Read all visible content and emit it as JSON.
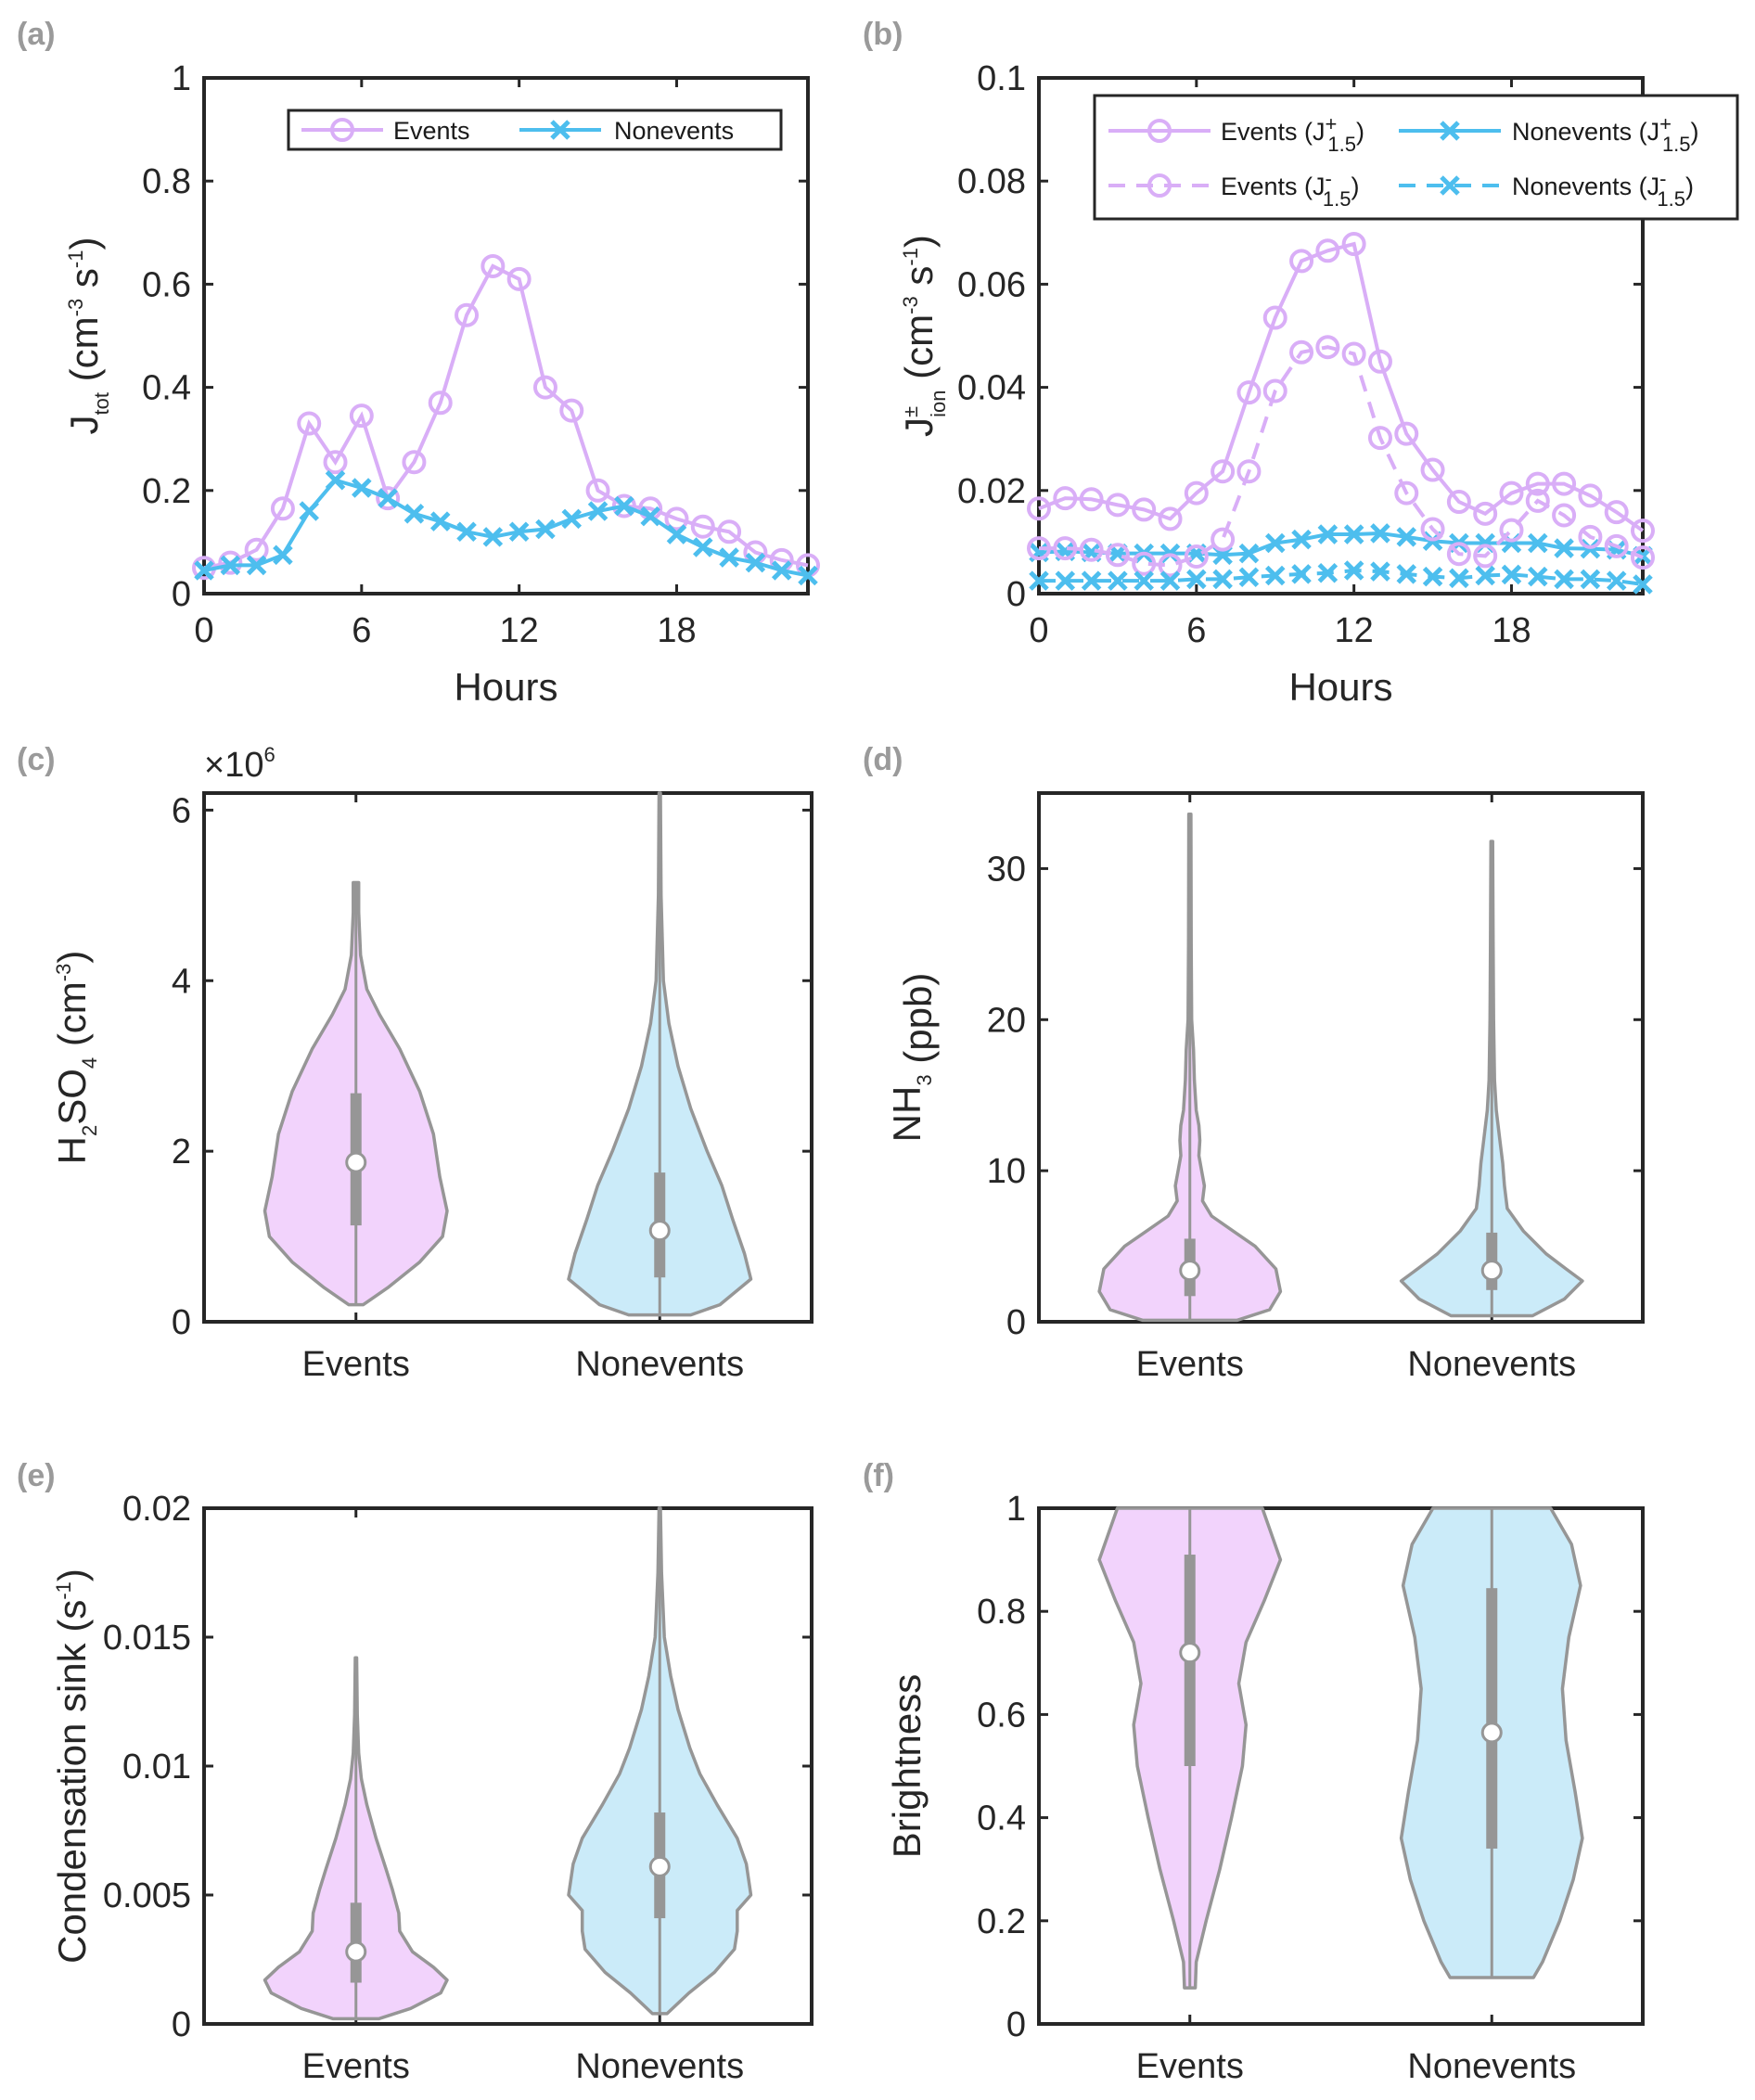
{
  "colors": {
    "events": "#D9AEF7",
    "nonevents": "#4DBEEE",
    "events_fill": "#F2D3FC",
    "nonevents_fill": "#CBEBF9",
    "violin_edge": "#969696",
    "box": "#969696",
    "axis": "#262626",
    "panel_tag": "#9A9A9A"
  },
  "chart_data": [
    {
      "id": "a",
      "panel_tag": "(a)",
      "type": "line",
      "xlabel": "Hours",
      "ylabel_main": "J",
      "ylabel_sub": "tot",
      "ylabel_units": "(cm",
      "ylabel_sup1": "-3",
      "ylabel_mid": " s",
      "ylabel_sup2": "-1",
      "ylabel_close": ")",
      "xlim": [
        0,
        23
      ],
      "ylim": [
        0,
        1
      ],
      "xticks": [
        0,
        6,
        12,
        18
      ],
      "xtick_labels": [
        "0",
        "6",
        "12",
        "18"
      ],
      "yticks": [
        0,
        0.2,
        0.4,
        0.6,
        0.8,
        1
      ],
      "ytick_labels": [
        "0",
        "0.2",
        "0.4",
        "0.6",
        "0.8",
        "1"
      ],
      "legend_position": "top-right",
      "x": [
        0,
        1,
        2,
        3,
        4,
        5,
        6,
        7,
        8,
        9,
        10,
        11,
        12,
        13,
        14,
        15,
        16,
        17,
        18,
        19,
        20,
        21,
        22,
        23
      ],
      "series": [
        {
          "name": "Events",
          "marker": "circle",
          "dash": false,
          "color_key": "events",
          "values": [
            0.05,
            0.06,
            0.085,
            0.165,
            0.33,
            0.255,
            0.345,
            0.185,
            0.255,
            0.37,
            0.54,
            0.635,
            0.61,
            0.4,
            0.355,
            0.2,
            0.17,
            0.165,
            0.145,
            0.13,
            0.12,
            0.08,
            0.065,
            0.055
          ]
        },
        {
          "name": "Nonevents",
          "marker": "x",
          "dash": false,
          "color_key": "nonevents",
          "values": [
            0.045,
            0.055,
            0.055,
            0.075,
            0.16,
            0.22,
            0.205,
            0.185,
            0.155,
            0.14,
            0.12,
            0.11,
            0.12,
            0.125,
            0.145,
            0.16,
            0.17,
            0.15,
            0.115,
            0.09,
            0.07,
            0.06,
            0.045,
            0.035
          ]
        }
      ]
    },
    {
      "id": "b",
      "panel_tag": "(b)",
      "type": "line",
      "xlabel": "Hours",
      "ylabel_main": "J",
      "ylabel_sup": "±",
      "ylabel_sub": "ion",
      "ylabel_units": "(cm",
      "ylabel_sup1": "-3",
      "ylabel_mid": " s",
      "ylabel_sup2": "-1",
      "ylabel_close": ")",
      "xlim": [
        0,
        23
      ],
      "ylim": [
        0,
        0.1
      ],
      "xticks": [
        0,
        6,
        12,
        18
      ],
      "xtick_labels": [
        "0",
        "6",
        "12",
        "18"
      ],
      "yticks": [
        0,
        0.02,
        0.04,
        0.06,
        0.08,
        0.1
      ],
      "ytick_labels": [
        "0",
        "0.02",
        "0.04",
        "0.06",
        "0.08",
        "0.1"
      ],
      "legend_position": "top-right",
      "x": [
        0,
        1,
        2,
        3,
        4,
        5,
        6,
        7,
        8,
        9,
        10,
        11,
        12,
        13,
        14,
        15,
        16,
        17,
        18,
        19,
        20,
        21,
        22,
        23
      ],
      "series": [
        {
          "name": "Events (J+1.5)",
          "legend_base": "Events (J",
          "legend_sup": "+",
          "legend_sub": "1.5",
          "marker": "circle",
          "dash": false,
          "color_key": "events",
          "values": [
            0.0165,
            0.0185,
            0.0183,
            0.0172,
            0.0163,
            0.0145,
            0.0195,
            0.0237,
            0.039,
            0.0535,
            0.0645,
            0.0665,
            0.0678,
            0.045,
            0.031,
            0.024,
            0.0178,
            0.0155,
            0.0195,
            0.0213,
            0.0213,
            0.019,
            0.0158,
            0.0122
          ]
        },
        {
          "name": "Nonevents (J+1.5)",
          "legend_base": "Nonevents (J",
          "legend_sup": "+",
          "legend_sub": "1.5",
          "marker": "x",
          "dash": false,
          "color_key": "nonevents",
          "values": [
            0.008,
            0.0082,
            0.008,
            0.0078,
            0.0078,
            0.0078,
            0.0078,
            0.0075,
            0.0078,
            0.0098,
            0.0105,
            0.0115,
            0.0115,
            0.0117,
            0.011,
            0.0102,
            0.0098,
            0.0098,
            0.0098,
            0.0098,
            0.0088,
            0.0087,
            0.0085,
            0.0073
          ]
        },
        {
          "name": "Events (J-1.5)",
          "legend_base": "Events (J",
          "legend_sup": "-",
          "legend_sub": "1.5",
          "marker": "circle",
          "dash": true,
          "color_key": "events",
          "values": [
            0.0088,
            0.0088,
            0.0085,
            0.0075,
            0.0058,
            0.0055,
            0.0072,
            0.0105,
            0.0237,
            0.0393,
            0.0468,
            0.0478,
            0.0465,
            0.0302,
            0.0195,
            0.0125,
            0.0077,
            0.0073,
            0.0123,
            0.018,
            0.0152,
            0.011,
            0.0092,
            0.007
          ]
        },
        {
          "name": "Nonevents (J-1.5)",
          "legend_base": "Nonevents (J",
          "legend_sup": "-",
          "legend_sub": "1.5",
          "marker": "x",
          "dash": true,
          "color_key": "nonevents",
          "values": [
            0.0025,
            0.0025,
            0.0025,
            0.0025,
            0.0025,
            0.0025,
            0.0028,
            0.0028,
            0.0032,
            0.0035,
            0.0038,
            0.004,
            0.0045,
            0.0043,
            0.0038,
            0.0033,
            0.003,
            0.0035,
            0.0037,
            0.0033,
            0.0028,
            0.0028,
            0.0025,
            0.0018
          ]
        }
      ]
    },
    {
      "id": "c",
      "panel_tag": "(c)",
      "type": "violin",
      "ylabel_parts": [
        "H",
        "2",
        "SO",
        "4",
        " (cm",
        "-3",
        ")"
      ],
      "exponent_label": "×10",
      "exponent_sup": "6",
      "categories": [
        "Events",
        "Nonevents"
      ],
      "ylim": [
        0,
        6200000
      ],
      "yticks": [
        0,
        2000000,
        4000000,
        6000000
      ],
      "ytick_labels": [
        "0",
        "2",
        "4",
        "6"
      ],
      "violins": [
        {
          "category": "Events",
          "color_key": "events_fill",
          "min": 200000,
          "max": 5150000,
          "whisker_high": 4900000,
          "q1": 1130000,
          "median": 1870000,
          "q3": 2680000,
          "density": [
            [
              200000,
              0.08
            ],
            [
              400000,
              0.35
            ],
            [
              700000,
              0.7
            ],
            [
              1000000,
              0.95
            ],
            [
              1300000,
              1.0
            ],
            [
              1700000,
              0.92
            ],
            [
              2200000,
              0.85
            ],
            [
              2700000,
              0.7
            ],
            [
              3200000,
              0.48
            ],
            [
              3600000,
              0.26
            ],
            [
              3900000,
              0.12
            ],
            [
              4300000,
              0.05
            ],
            [
              4800000,
              0.03
            ],
            [
              5150000,
              0.03
            ]
          ]
        },
        {
          "category": "Nonevents",
          "color_key": "nonevents_fill",
          "min": 80000,
          "max": 6200000,
          "whisker_high": 3600000,
          "q1": 520000,
          "median": 1070000,
          "q3": 1750000,
          "density": [
            [
              80000,
              0.34
            ],
            [
              200000,
              0.66
            ],
            [
              500000,
              1.0
            ],
            [
              800000,
              0.93
            ],
            [
              1200000,
              0.8
            ],
            [
              1600000,
              0.68
            ],
            [
              2000000,
              0.52
            ],
            [
              2500000,
              0.34
            ],
            [
              3000000,
              0.2
            ],
            [
              3500000,
              0.1
            ],
            [
              4000000,
              0.04
            ],
            [
              5000000,
              0.015
            ],
            [
              6200000,
              0.008
            ]
          ]
        }
      ]
    },
    {
      "id": "d",
      "panel_tag": "(d)",
      "type": "violin",
      "ylabel_parts": [
        "NH",
        "3",
        "",
        "",
        " (ppb)",
        "",
        ""
      ],
      "categories": [
        "Events",
        "Nonevents"
      ],
      "ylim": [
        0,
        35
      ],
      "yticks": [
        0,
        10,
        20,
        30
      ],
      "ytick_labels": [
        "0",
        "10",
        "20",
        "30"
      ],
      "violins": [
        {
          "category": "Events",
          "color_key": "events_fill",
          "min": 0.1,
          "max": 33.6,
          "whisker_high": 11,
          "q1": 1.7,
          "median": 3.4,
          "q3": 5.5,
          "density": [
            [
              0.1,
              0.52
            ],
            [
              0.8,
              0.88
            ],
            [
              2,
              1.0
            ],
            [
              3.5,
              0.95
            ],
            [
              5,
              0.72
            ],
            [
              6,
              0.48
            ],
            [
              7,
              0.24
            ],
            [
              8,
              0.14
            ],
            [
              9,
              0.16
            ],
            [
              10,
              0.13
            ],
            [
              11,
              0.1
            ],
            [
              12,
              0.11
            ],
            [
              13,
              0.1
            ],
            [
              14,
              0.07
            ],
            [
              16,
              0.05
            ],
            [
              18,
              0.04
            ],
            [
              20,
              0.02
            ],
            [
              25,
              0.015
            ],
            [
              33.6,
              0.012
            ]
          ]
        },
        {
          "category": "Nonevents",
          "color_key": "nonevents_fill",
          "min": 0.4,
          "max": 31.8,
          "whisker_high": 11.5,
          "q1": 2.1,
          "median": 3.4,
          "q3": 5.9,
          "density": [
            [
              0.4,
              0.45
            ],
            [
              1.5,
              0.8
            ],
            [
              2.7,
              1.0
            ],
            [
              3.5,
              0.82
            ],
            [
              4.5,
              0.6
            ],
            [
              6,
              0.35
            ],
            [
              7.5,
              0.17
            ],
            [
              9,
              0.14
            ],
            [
              10.5,
              0.12
            ],
            [
              12,
              0.09
            ],
            [
              14,
              0.05
            ],
            [
              16,
              0.03
            ],
            [
              20,
              0.02
            ],
            [
              25,
              0.015
            ],
            [
              31.8,
              0.01
            ]
          ]
        }
      ]
    },
    {
      "id": "e",
      "panel_tag": "(e)",
      "type": "violin",
      "ylabel_parts": [
        "Condensation sink (s",
        "",
        "",
        "",
        "",
        "-1",
        ")"
      ],
      "categories": [
        "Events",
        "Nonevents"
      ],
      "ylim": [
        0,
        0.02
      ],
      "yticks": [
        0,
        0.005,
        0.01,
        0.015,
        0.02
      ],
      "ytick_labels": [
        "0",
        "0.005",
        "0.01",
        "0.015",
        "0.02"
      ],
      "violins": [
        {
          "category": "Events",
          "color_key": "events_fill",
          "min": 0.0002,
          "max": 0.0142,
          "whisker_high": 0.0092,
          "q1": 0.0016,
          "median": 0.0028,
          "q3": 0.0047,
          "density": [
            [
              0.0002,
              0.25
            ],
            [
              0.0006,
              0.6
            ],
            [
              0.0012,
              0.93
            ],
            [
              0.0017,
              1.0
            ],
            [
              0.0022,
              0.85
            ],
            [
              0.0028,
              0.62
            ],
            [
              0.0036,
              0.48
            ],
            [
              0.0043,
              0.47
            ],
            [
              0.0052,
              0.4
            ],
            [
              0.006,
              0.33
            ],
            [
              0.0072,
              0.22
            ],
            [
              0.0085,
              0.12
            ],
            [
              0.0095,
              0.06
            ],
            [
              0.0105,
              0.03
            ],
            [
              0.012,
              0.015
            ],
            [
              0.0142,
              0.008
            ]
          ]
        },
        {
          "category": "Nonevents",
          "color_key": "nonevents_fill",
          "min": 0.0004,
          "max": 0.02,
          "whisker_high": 0.0143,
          "q1": 0.0041,
          "median": 0.0061,
          "q3": 0.0082,
          "density": [
            [
              0.0004,
              0.08
            ],
            [
              0.0012,
              0.32
            ],
            [
              0.002,
              0.6
            ],
            [
              0.0029,
              0.82
            ],
            [
              0.0036,
              0.85
            ],
            [
              0.0044,
              0.85
            ],
            [
              0.005,
              1.0
            ],
            [
              0.0062,
              0.95
            ],
            [
              0.0072,
              0.85
            ],
            [
              0.0085,
              0.63
            ],
            [
              0.0097,
              0.44
            ],
            [
              0.0107,
              0.33
            ],
            [
              0.0122,
              0.2
            ],
            [
              0.0135,
              0.12
            ],
            [
              0.015,
              0.05
            ],
            [
              0.0175,
              0.02
            ],
            [
              0.02,
              0.008
            ]
          ]
        }
      ]
    },
    {
      "id": "f",
      "panel_tag": "(f)",
      "type": "violin",
      "ylabel_parts": [
        "Brightness",
        "",
        "",
        "",
        "",
        "",
        ""
      ],
      "categories": [
        "Events",
        "Nonevents"
      ],
      "ylim": [
        0,
        1
      ],
      "yticks": [
        0,
        0.2,
        0.4,
        0.6,
        0.8,
        1
      ],
      "ytick_labels": [
        "0",
        "0.2",
        "0.4",
        "0.6",
        "0.8",
        "1"
      ],
      "violins": [
        {
          "category": "Events",
          "color_key": "events_fill",
          "min": 0.07,
          "max": 1.0,
          "whisker_high": 1.0,
          "q1": 0.5,
          "median": 0.72,
          "q3": 0.91,
          "density": [
            [
              0.07,
              0.06
            ],
            [
              0.12,
              0.07
            ],
            [
              0.2,
              0.18
            ],
            [
              0.3,
              0.33
            ],
            [
              0.4,
              0.46
            ],
            [
              0.5,
              0.58
            ],
            [
              0.58,
              0.62
            ],
            [
              0.66,
              0.54
            ],
            [
              0.74,
              0.62
            ],
            [
              0.82,
              0.82
            ],
            [
              0.9,
              1.0
            ],
            [
              0.96,
              0.88
            ],
            [
              1.0,
              0.8
            ]
          ]
        },
        {
          "category": "Nonevents",
          "color_key": "nonevents_fill",
          "min": 0.09,
          "max": 1.0,
          "whisker_high": 1.0,
          "q1": 0.34,
          "median": 0.565,
          "q3": 0.845,
          "density": [
            [
              0.09,
              0.46
            ],
            [
              0.12,
              0.56
            ],
            [
              0.2,
              0.75
            ],
            [
              0.28,
              0.9
            ],
            [
              0.36,
              1.0
            ],
            [
              0.45,
              0.92
            ],
            [
              0.55,
              0.82
            ],
            [
              0.65,
              0.78
            ],
            [
              0.75,
              0.85
            ],
            [
              0.85,
              0.98
            ],
            [
              0.93,
              0.88
            ],
            [
              1.0,
              0.65
            ]
          ]
        }
      ]
    }
  ]
}
